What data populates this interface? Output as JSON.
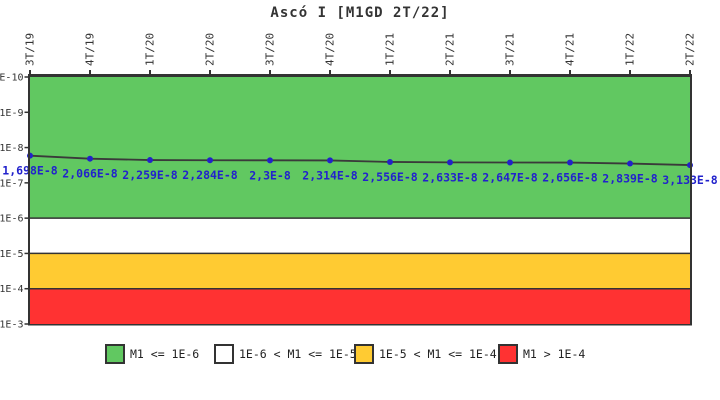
{
  "chart_data": {
    "type": "line",
    "title": "Ascó I [M1GD 2T/22]",
    "x_categories": [
      "3T/19",
      "4T/19",
      "1T/20",
      "2T/20",
      "3T/20",
      "4T/20",
      "1T/21",
      "2T/21",
      "3T/21",
      "4T/21",
      "1T/22",
      "2T/22"
    ],
    "values": [
      1.698e-08,
      2.066e-08,
      2.259e-08,
      2.284e-08,
      2.3e-08,
      2.314e-08,
      2.556e-08,
      2.633e-08,
      2.647e-08,
      2.656e-08,
      2.839e-08,
      3.133e-08
    ],
    "point_labels": [
      "1,698E-8",
      "2,066E-8",
      "2,259E-8",
      "2,284E-8",
      "2,3E-8",
      "2,314E-8",
      "2,556E-8",
      "2,633E-8",
      "2,647E-8",
      "2,656E-8",
      "2,839E-8",
      "3,133E-8"
    ],
    "y_ticks": [
      "1E-10",
      "1E-9",
      "1E-8",
      "1E-7",
      "1E-6",
      "1E-5",
      "1E-4",
      "1E-3"
    ],
    "y_scale": "log",
    "y_axis_inverted": true,
    "y_range": [
      1e-10,
      0.001
    ],
    "xlabel": "",
    "ylabel": "",
    "bands": [
      {
        "name": "band-green",
        "from": 1e-10,
        "to": 1e-06,
        "color": "#61C861"
      },
      {
        "name": "band-white",
        "from": 1e-06,
        "to": 1e-05,
        "color": "#FFFFFF"
      },
      {
        "name": "band-yellow",
        "from": 1e-05,
        "to": 0.0001,
        "color": "#FFCB32"
      },
      {
        "name": "band-red",
        "from": 0.0001,
        "to": 0.001,
        "color": "#FF3232"
      }
    ],
    "legend": [
      {
        "label": "M1 <= 1E-6",
        "color": "#61C861"
      },
      {
        "label": "1E-6 < M1 <= 1E-5",
        "color": "#FFFFFF"
      },
      {
        "label": "1E-5 < M1 <= 1E-4",
        "color": "#FFCB32"
      },
      {
        "label": "M1 > 1E-4",
        "color": "#FF3232"
      }
    ],
    "legend_position": "bottom",
    "colors": {
      "line": "#3A3A3A",
      "marker": "#2222C8",
      "point_label": "#2222CC",
      "axis": "#333333",
      "tick_text": "#333333"
    }
  }
}
